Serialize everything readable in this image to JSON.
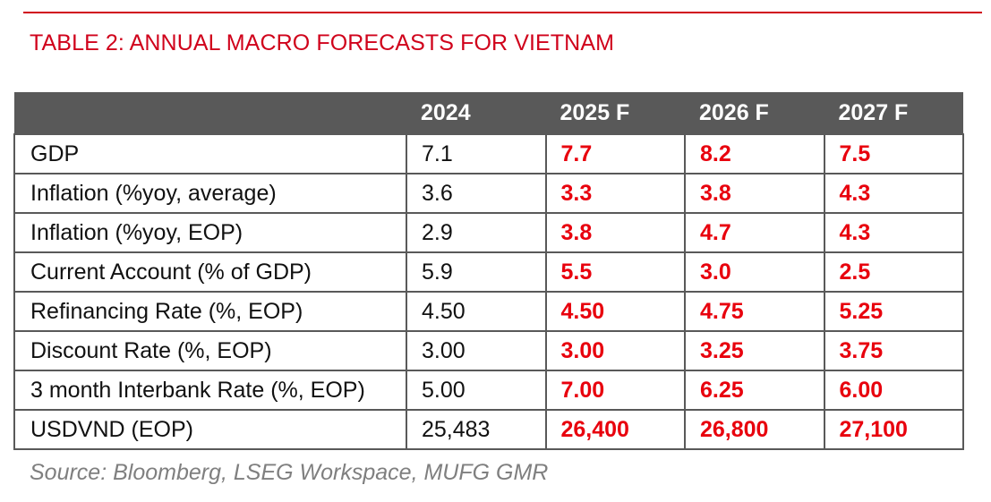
{
  "title": "TABLE 2: ANNUAL MACRO FORECASTS FOR VIETNAM",
  "colors": {
    "accent": "#d0021b",
    "forecast_text": "#e8000d",
    "header_bg": "#595959",
    "source_text": "#7f7f7f"
  },
  "table": {
    "headers": [
      "",
      "2024",
      "2025 F",
      "2026 F",
      "2027 F"
    ],
    "rows": [
      {
        "label": "GDP",
        "values": [
          "7.1",
          "7.7",
          "8.2",
          "7.5"
        ]
      },
      {
        "label": "Inflation (%yoy, average)",
        "values": [
          "3.6",
          "3.3",
          "3.8",
          "4.3"
        ]
      },
      {
        "label": "Inflation (%yoy, EOP)",
        "values": [
          "2.9",
          "3.8",
          "4.7",
          "4.3"
        ]
      },
      {
        "label": "Current Account (% of GDP)",
        "values": [
          "5.9",
          "5.5",
          "3.0",
          "2.5"
        ]
      },
      {
        "label": "Refinancing Rate (%, EOP)",
        "values": [
          "4.50",
          "4.50",
          "4.75",
          "5.25"
        ]
      },
      {
        "label": "Discount Rate (%, EOP)",
        "values": [
          "3.00",
          "3.00",
          "3.25",
          "3.75"
        ]
      },
      {
        "label": "3 month Interbank Rate (%, EOP)",
        "values": [
          "5.00",
          "7.00",
          "6.25",
          "6.00"
        ]
      },
      {
        "label": "USDVND (EOP)",
        "values": [
          "25,483",
          "26,400",
          "26,800",
          "27,100"
        ]
      }
    ]
  },
  "source": "Source: Bloomberg, LSEG Workspace, MUFG GMR"
}
